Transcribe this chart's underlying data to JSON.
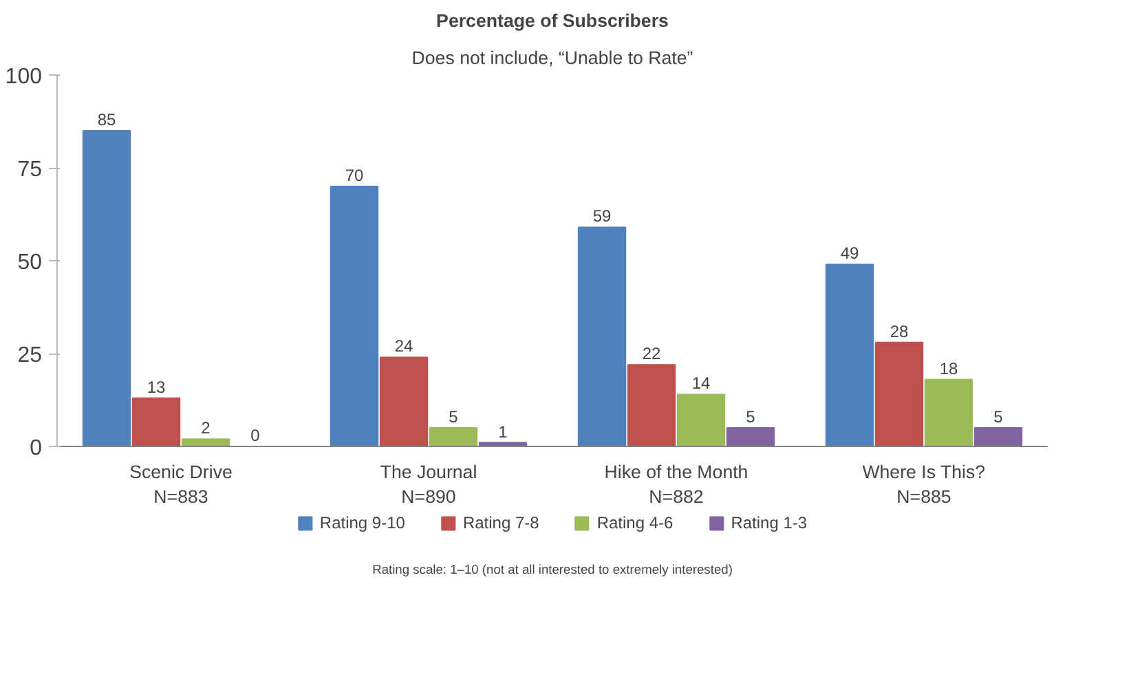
{
  "chart_data": {
    "type": "bar",
    "title": "Percentage of Subscribers",
    "subtitle": "Does not include, “Unable to Rate”",
    "categories": [
      "Scenic Drive\nN=883",
      "The Journal\nN=890",
      "Hike of the Month\nN=882",
      "Where Is This?\nN=885"
    ],
    "series": [
      {
        "name": "Rating 9-10",
        "color": "#4f81bd",
        "values": [
          85,
          70,
          59,
          49
        ]
      },
      {
        "name": "Rating 7-8",
        "color": "#c0504d",
        "values": [
          13,
          24,
          22,
          28
        ]
      },
      {
        "name": "Rating 4-6",
        "color": "#9bbb59",
        "values": [
          2,
          5,
          14,
          18
        ]
      },
      {
        "name": "Rating 1-3",
        "color": "#8064a2",
        "values": [
          0,
          1,
          5,
          5
        ]
      }
    ],
    "ylim": [
      0,
      100
    ],
    "yticks": [
      0,
      25,
      50,
      75,
      100
    ],
    "grid": false,
    "legend": "bottom",
    "data_labels": true,
    "annotations": [
      "Rating scale: 1–10 (not at all interested to extremely interested)"
    ]
  }
}
